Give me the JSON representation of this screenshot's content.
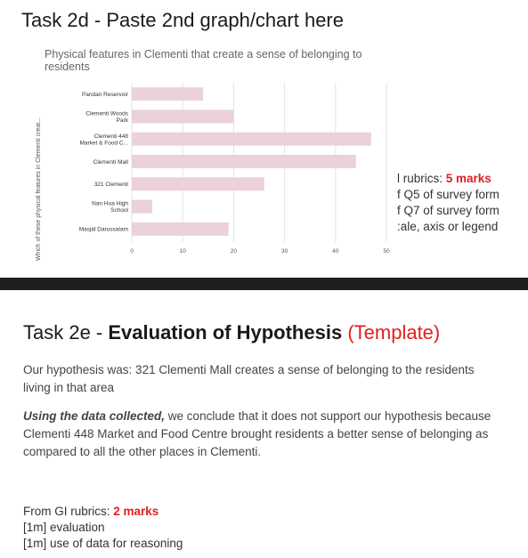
{
  "slide1": {
    "heading": "Task 2d - Paste 2nd graph/chart here",
    "rubrics": {
      "line1_prefix": "l rubrics: ",
      "line1_marks": "5 marks",
      "line2": "f Q5 of survey form",
      "line3": "f Q7 of survey form",
      "line4": ":ale, axis or legend"
    }
  },
  "chart_data": {
    "type": "bar",
    "orientation": "horizontal",
    "title": "Physical features in Clementi that create a sense of belonging to residents",
    "ylabel": "Which of these physical features in Clementi creat...",
    "categories": [
      [
        "Pandan Reservoir"
      ],
      [
        "Clementi Woods",
        "Park"
      ],
      [
        "Clementi 448",
        "Market & Food C..."
      ],
      [
        "Clementi Mall"
      ],
      [
        "321 Clementi"
      ],
      [
        "Nan Hua High",
        "School"
      ],
      [
        "Masjid Darussalam"
      ]
    ],
    "values": [
      14,
      20,
      47,
      44,
      26,
      4,
      19
    ],
    "xlim": [
      0,
      50
    ],
    "xticks": [
      "0",
      "10",
      "20",
      "30",
      "40",
      "50"
    ],
    "bar_color": "#ead1dc",
    "grid": true
  },
  "slide2": {
    "heading_prefix": "Task 2e - ",
    "heading_bold": "Evaluation of Hypothesis",
    "heading_suffix": "(Template)",
    "hypothesis": "Our hypothesis was: 321 Clementi Mall creates a sense of belonging to the residents living in that area",
    "conclusion_lead": "Using the data collected,",
    "conclusion_rest": " we conclude that it does not support our hypothesis because Clementi 448 Market and Food Centre brought residents a better sense of belonging as compared to all the other places in Clementi.",
    "gi_prefix": "From GI rubrics: ",
    "gi_marks": "2 marks",
    "gi_item1": "[1m] evaluation",
    "gi_item2": "[1m] use of data for reasoning"
  }
}
